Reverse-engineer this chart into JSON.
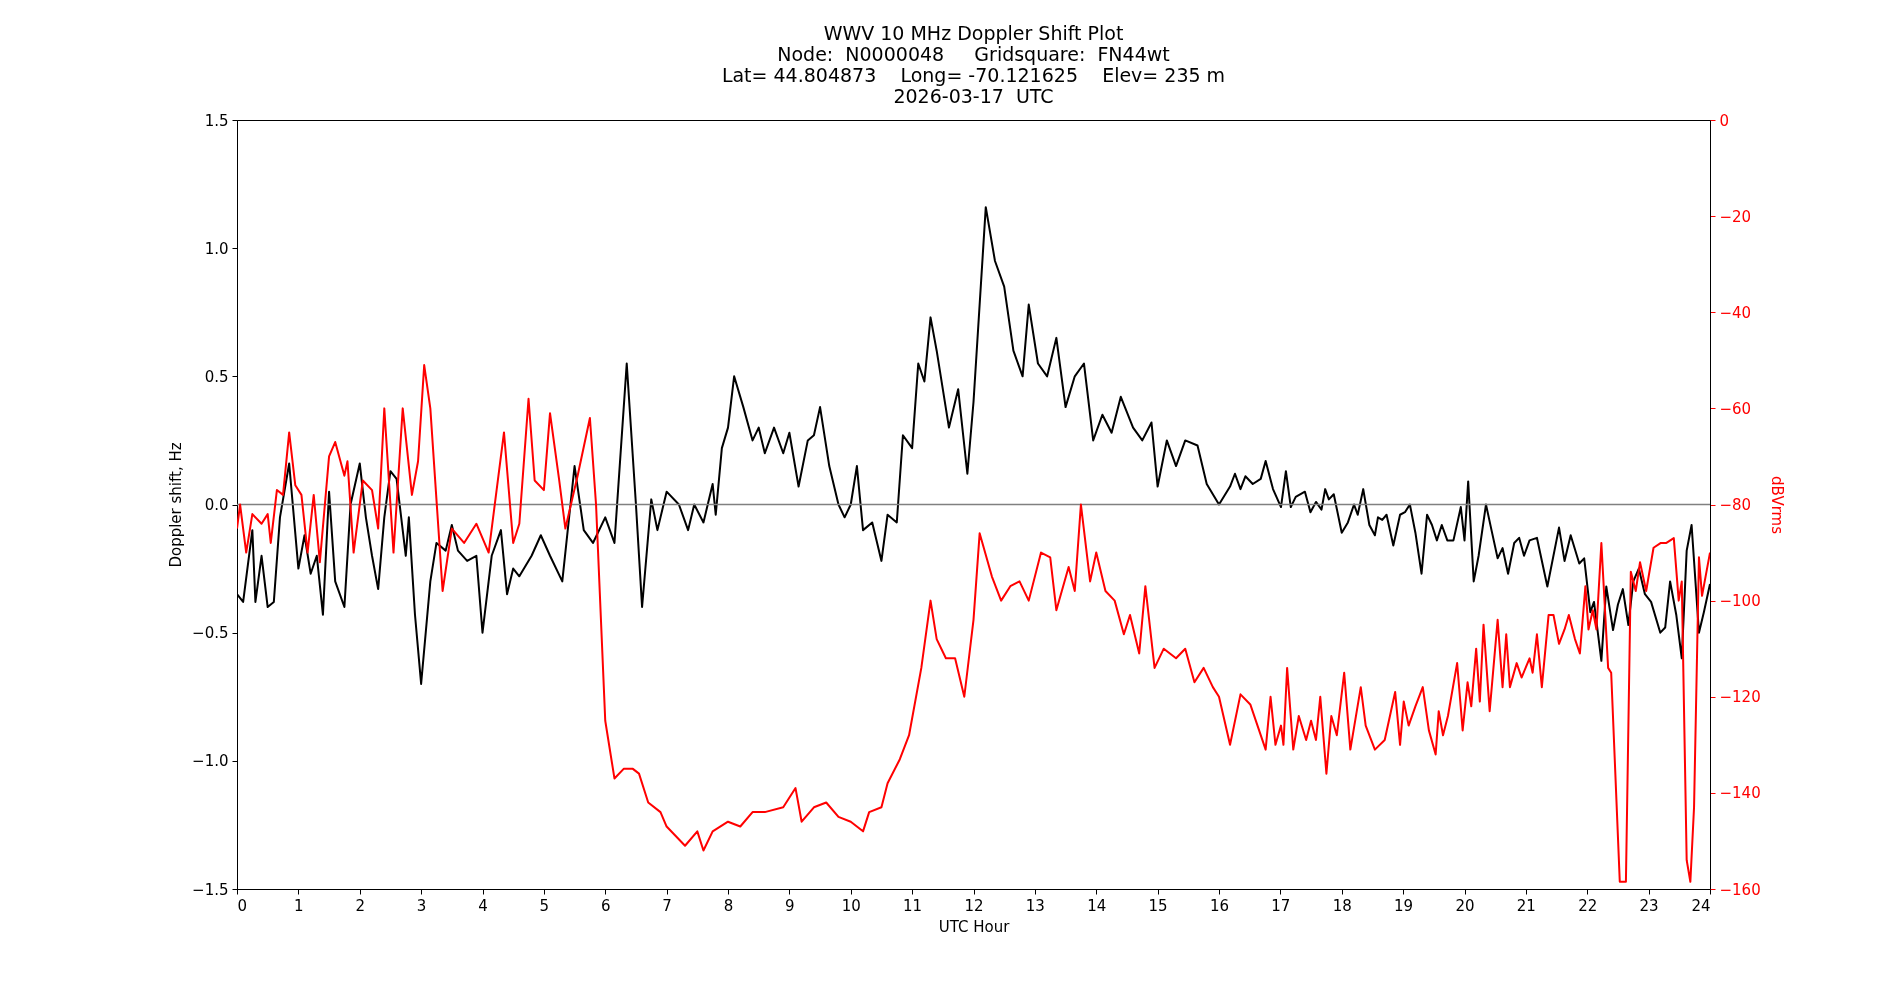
{
  "chart_data": {
    "type": "line",
    "title": "WWV 10 MHz Doppler Shift Plot\nNode:  N0000048     Gridsquare:  FN44wt\nLat= 44.804873    Long= -70.121625    Elev= 235 m\n2026-03-17  UTC",
    "xlabel": "UTC Hour",
    "ylabel": "Doppler shift, Hz",
    "y2label": "dBVrms",
    "xlim": [
      0,
      24
    ],
    "xticks": [
      0,
      1,
      2,
      3,
      4,
      5,
      6,
      7,
      8,
      9,
      10,
      11,
      12,
      13,
      14,
      15,
      16,
      17,
      18,
      19,
      20,
      21,
      22,
      23,
      24
    ],
    "ylim": [
      -1.5,
      1.5
    ],
    "yticks": [
      {
        "value": -1.5,
        "label": "−1.5"
      },
      {
        "value": -1,
        "label": "−1.0"
      },
      {
        "value": -0.5,
        "label": "−0.5"
      },
      {
        "value": 0,
        "label": "0.0"
      },
      {
        "value": 0.5,
        "label": "0.5"
      },
      {
        "value": 1,
        "label": "1.0"
      },
      {
        "value": 1.5,
        "label": "1.5"
      }
    ],
    "y2lim": [
      -160,
      0
    ],
    "y2ticks": [
      {
        "value": -160,
        "label": "−160"
      },
      {
        "value": -140,
        "label": "−140"
      },
      {
        "value": -120,
        "label": "−120"
      },
      {
        "value": -100,
        "label": "−100"
      },
      {
        "value": -80,
        "label": "−80"
      },
      {
        "value": -60,
        "label": "−60"
      },
      {
        "value": -40,
        "label": "−40"
      },
      {
        "value": -20,
        "label": "−20"
      },
      {
        "value": 0,
        "label": "0"
      }
    ],
    "grid": false,
    "line_style": "solid",
    "marker": "none",
    "ref_lines": [
      {
        "axis": "y",
        "value": 0,
        "color": "#808080"
      }
    ],
    "series": [
      {
        "color": "#000000",
        "x": [
          0,
          0.1,
          0.25,
          0.3,
          0.4,
          0.5,
          0.6,
          0.7,
          0.85,
          1.0,
          1.1,
          1.2,
          1.3,
          1.4,
          1.5,
          1.6,
          1.75,
          1.85,
          2.0,
          2.1,
          2.2,
          2.3,
          2.4,
          2.5,
          2.6,
          2.75,
          2.8,
          2.9,
          3.0,
          3.15,
          3.25,
          3.4,
          3.5,
          3.6,
          3.75,
          3.9,
          4.0,
          4.15,
          4.3,
          4.4,
          4.5,
          4.6,
          4.8,
          4.95,
          5.1,
          5.3,
          5.5,
          5.65,
          5.8,
          6.0,
          6.15,
          6.35,
          6.5,
          6.6,
          6.75,
          6.85,
          7.0,
          7.2,
          7.35,
          7.45,
          7.6,
          7.75,
          7.8,
          7.9,
          8.0,
          8.1,
          8.25,
          8.4,
          8.5,
          8.6,
          8.75,
          8.9,
          9.0,
          9.15,
          9.3,
          9.4,
          9.5,
          9.65,
          9.8,
          9.9,
          10.0,
          10.1,
          10.2,
          10.35,
          10.5,
          10.6,
          10.75,
          10.85,
          11.0,
          11.1,
          11.2,
          11.3,
          11.4,
          11.6,
          11.75,
          11.9,
          12.0,
          12.2,
          12.35,
          12.5,
          12.65,
          12.8,
          12.9,
          13.05,
          13.2,
          13.35,
          13.5,
          13.65,
          13.8,
          13.95,
          14.1,
          14.25,
          14.4,
          14.6,
          14.75,
          14.9,
          15.0,
          15.15,
          15.3,
          15.45,
          15.65,
          15.8,
          16.0,
          16.18,
          16.26,
          16.35,
          16.43,
          16.55,
          16.68,
          16.76,
          16.88,
          17.01,
          17.09,
          17.17,
          17.25,
          17.4,
          17.49,
          17.58,
          17.67,
          17.73,
          17.79,
          17.87,
          18.0,
          18.1,
          18.2,
          18.26,
          18.35,
          18.45,
          18.54,
          18.59,
          18.66,
          18.73,
          18.84,
          18.95,
          19.03,
          19.11,
          19.2,
          19.3,
          19.39,
          19.47,
          19.55,
          19.63,
          19.72,
          19.82,
          19.94,
          20.0,
          20.06,
          20.15,
          20.23,
          20.35,
          20.44,
          20.54,
          20.62,
          20.71,
          20.81,
          20.89,
          20.97,
          21.06,
          21.18,
          21.35,
          21.54,
          21.63,
          21.73,
          21.87,
          21.95,
          22.05,
          22.11,
          22.23,
          22.31,
          22.42,
          22.5,
          22.58,
          22.67,
          22.75,
          22.84,
          22.94,
          23.04,
          23.19,
          23.27,
          23.35,
          23.45,
          23.54,
          23.62,
          23.7,
          23.82,
          23.9,
          24.0
        ],
        "values": [
          -0.35,
          -0.38,
          -0.1,
          -0.38,
          -0.2,
          -0.4,
          -0.38,
          -0.05,
          0.16,
          -0.25,
          -0.12,
          -0.27,
          -0.2,
          -0.43,
          0.05,
          -0.3,
          -0.4,
          0.0,
          0.16,
          -0.05,
          -0.2,
          -0.33,
          -0.05,
          0.13,
          0.1,
          -0.2,
          -0.05,
          -0.43,
          -0.7,
          -0.3,
          -0.15,
          -0.18,
          -0.08,
          -0.18,
          -0.22,
          -0.2,
          -0.5,
          -0.2,
          -0.1,
          -0.35,
          -0.25,
          -0.28,
          -0.2,
          -0.12,
          -0.2,
          -0.3,
          0.15,
          -0.1,
          -0.15,
          -0.05,
          -0.15,
          0.55,
          0.0,
          -0.4,
          0.02,
          -0.1,
          0.05,
          0.0,
          -0.1,
          0.0,
          -0.07,
          0.08,
          -0.04,
          0.22,
          0.3,
          0.5,
          0.38,
          0.25,
          0.3,
          0.2,
          0.3,
          0.2,
          0.28,
          0.07,
          0.25,
          0.27,
          0.38,
          0.15,
          0.0,
          -0.05,
          0.0,
          0.15,
          -0.1,
          -0.07,
          -0.22,
          -0.04,
          -0.07,
          0.27,
          0.22,
          0.55,
          0.48,
          0.73,
          0.6,
          0.3,
          0.45,
          0.12,
          0.4,
          1.16,
          0.95,
          0.85,
          0.6,
          0.5,
          0.78,
          0.55,
          0.5,
          0.65,
          0.38,
          0.5,
          0.55,
          0.25,
          0.35,
          0.28,
          0.42,
          0.3,
          0.25,
          0.32,
          0.07,
          0.25,
          0.15,
          0.25,
          0.23,
          0.08,
          0.0,
          0.07,
          0.12,
          0.06,
          0.11,
          0.08,
          0.1,
          0.17,
          0.06,
          -0.01,
          0.13,
          -0.01,
          0.03,
          0.05,
          -0.03,
          0.01,
          -0.02,
          0.06,
          0.02,
          0.04,
          -0.11,
          -0.07,
          0.0,
          -0.04,
          0.06,
          -0.08,
          -0.12,
          -0.05,
          -0.06,
          -0.04,
          -0.16,
          -0.04,
          -0.03,
          0.0,
          -0.11,
          -0.27,
          -0.04,
          -0.08,
          -0.14,
          -0.08,
          -0.14,
          -0.14,
          -0.01,
          -0.14,
          0.09,
          -0.3,
          -0.2,
          0.0,
          -0.1,
          -0.21,
          -0.17,
          -0.27,
          -0.15,
          -0.13,
          -0.2,
          -0.14,
          -0.13,
          -0.32,
          -0.09,
          -0.22,
          -0.12,
          -0.23,
          -0.21,
          -0.42,
          -0.38,
          -0.61,
          -0.32,
          -0.49,
          -0.39,
          -0.33,
          -0.47,
          -0.3,
          -0.25,
          -0.35,
          -0.38,
          -0.5,
          -0.48,
          -0.3,
          -0.43,
          -0.6,
          -0.18,
          -0.08,
          -0.5,
          -0.42,
          -0.31
        ]
      },
      {
        "color": "#ff0000",
        "axis": "y2",
        "x": [
          0,
          0.05,
          0.15,
          0.25,
          0.4,
          0.5,
          0.55,
          0.65,
          0.75,
          0.85,
          0.95,
          1.05,
          1.15,
          1.25,
          1.35,
          1.5,
          1.6,
          1.75,
          1.8,
          1.9,
          2.05,
          2.2,
          2.3,
          2.4,
          2.55,
          2.7,
          2.85,
          2.95,
          3.05,
          3.15,
          3.35,
          3.5,
          3.7,
          3.9,
          4.1,
          4.35,
          4.5,
          4.6,
          4.75,
          4.85,
          5.0,
          5.1,
          5.25,
          5.35,
          5.55,
          5.75,
          5.85,
          6.0,
          6.15,
          6.3,
          6.45,
          6.55,
          6.7,
          6.9,
          7.0,
          7.3,
          7.5,
          7.6,
          7.75,
          8.0,
          8.2,
          8.4,
          8.6,
          8.9,
          9.1,
          9.2,
          9.4,
          9.6,
          9.8,
          10.0,
          10.2,
          10.3,
          10.5,
          10.6,
          10.8,
          10.95,
          11.15,
          11.3,
          11.4,
          11.55,
          11.7,
          11.85,
          12.0,
          12.1,
          12.3,
          12.45,
          12.6,
          12.75,
          12.9,
          13.1,
          13.25,
          13.35,
          13.55,
          13.65,
          13.75,
          13.9,
          14.0,
          14.15,
          14.3,
          14.45,
          14.55,
          14.7,
          14.8,
          14.95,
          15.1,
          15.3,
          15.45,
          15.6,
          15.75,
          15.9,
          16.0,
          16.18,
          16.35,
          16.51,
          16.76,
          16.84,
          16.92,
          17.01,
          17.05,
          17.11,
          17.21,
          17.3,
          17.42,
          17.5,
          17.58,
          17.65,
          17.75,
          17.83,
          17.92,
          18.04,
          18.14,
          18.31,
          18.39,
          18.54,
          18.7,
          18.87,
          18.95,
          19.01,
          19.09,
          19.2,
          19.32,
          19.42,
          19.53,
          19.58,
          19.65,
          19.73,
          19.88,
          19.97,
          20.05,
          20.11,
          20.19,
          20.25,
          20.31,
          20.41,
          20.54,
          20.62,
          20.68,
          20.74,
          20.85,
          20.93,
          21.06,
          21.11,
          21.18,
          21.26,
          21.37,
          21.45,
          21.54,
          21.63,
          21.7,
          21.8,
          21.88,
          21.97,
          22.02,
          22.09,
          22.15,
          22.23,
          22.34,
          22.39,
          22.53,
          22.63,
          22.71,
          22.79,
          22.86,
          22.96,
          23.08,
          23.2,
          23.29,
          23.41,
          23.49,
          23.54,
          23.62,
          23.68,
          23.74,
          23.82,
          23.87,
          24.0
        ],
        "values": [
          -85,
          -80,
          -90,
          -82,
          -84,
          -82,
          -88,
          -77,
          -78,
          -65,
          -76,
          -78,
          -90,
          -78,
          -92,
          -70,
          -67,
          -74,
          -71,
          -90,
          -75,
          -77,
          -85,
          -60,
          -90,
          -60,
          -78,
          -71,
          -51,
          -60,
          -98,
          -85,
          -88,
          -84,
          -90,
          -65,
          -88,
          -84,
          -58,
          -75,
          -77,
          -61,
          -75,
          -85,
          -74,
          -62,
          -80,
          -125,
          -137,
          -135,
          -135,
          -136,
          -142,
          -144,
          -147,
          -151,
          -148,
          -152,
          -148,
          -146,
          -147,
          -144,
          -144,
          -143,
          -139,
          -146,
          -143,
          -142,
          -145,
          -146,
          -148,
          -144,
          -143,
          -138,
          -133,
          -128,
          -114,
          -100,
          -108,
          -112,
          -112,
          -120,
          -104,
          -86,
          -95,
          -100,
          -97,
          -96,
          -100,
          -90,
          -91,
          -102,
          -93,
          -98,
          -80,
          -96,
          -90,
          -98,
          -100,
          -107,
          -103,
          -111,
          -97,
          -114,
          -110,
          -112,
          -110,
          -117,
          -114,
          -118,
          -120,
          -130,
          -119.5,
          -121.6,
          -131,
          -120,
          -130,
          -126,
          -130,
          -114,
          -131,
          -124,
          -129,
          -125,
          -129,
          -120,
          -136,
          -124,
          -128,
          -115,
          -131,
          -118,
          -126,
          -131,
          -129,
          -119,
          -130,
          -121,
          -126,
          -122,
          -118,
          -127,
          -132,
          -123,
          -128,
          -124,
          -113,
          -127,
          -117,
          -122,
          -110,
          -121,
          -105,
          -123,
          -104,
          -118,
          -107,
          -118,
          -113,
          -116,
          -112,
          -115,
          -107,
          -118,
          -103,
          -103,
          -109,
          -106,
          -103,
          -108,
          -111,
          -97,
          -106,
          -102,
          -106,
          -88,
          -114,
          -115,
          -158.5,
          -158.5,
          -94,
          -98,
          -92,
          -98,
          -89,
          -88,
          -88,
          -87,
          -100,
          -96,
          -154,
          -158.5,
          -143,
          -91,
          -99,
          -90
        ]
      }
    ]
  }
}
